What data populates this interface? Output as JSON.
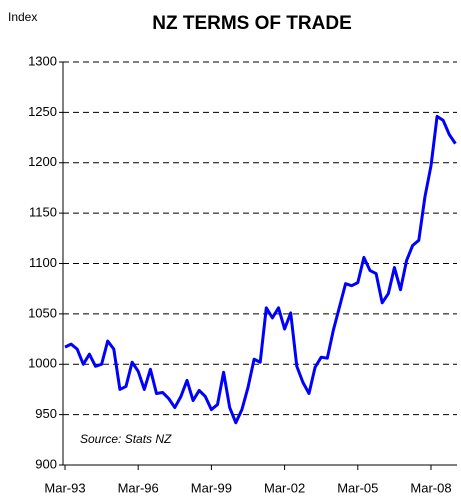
{
  "chart_data": {
    "type": "line",
    "title": "NZ TERMS OF TRADE",
    "y_label": "Index",
    "annotation": "Source: Stats NZ",
    "categories": [
      "Mar-93",
      null,
      null,
      null,
      null,
      null,
      null,
      null,
      null,
      null,
      null,
      null,
      "Mar-96",
      null,
      null,
      null,
      null,
      null,
      null,
      null,
      null,
      null,
      null,
      null,
      "Mar-99",
      null,
      null,
      null,
      null,
      null,
      null,
      null,
      null,
      null,
      null,
      null,
      "Mar-02",
      null,
      null,
      null,
      null,
      null,
      null,
      null,
      null,
      null,
      null,
      null,
      "Mar-05",
      null,
      null,
      null,
      null,
      null,
      null,
      null,
      null,
      null,
      null,
      null,
      "Mar-08",
      null,
      null,
      null,
      null
    ],
    "series": [
      {
        "name": "Terms of trade",
        "color": "#0000ff",
        "values": [
          1017,
          1020,
          1015,
          1000,
          1010,
          998,
          1000,
          1023,
          1015,
          975,
          978,
          1002,
          993,
          975,
          995,
          971,
          972,
          966,
          957,
          968,
          984,
          964,
          974,
          968,
          955,
          960,
          992,
          957,
          942,
          955,
          977,
          1005,
          1002,
          1056,
          1046,
          1056,
          1035,
          1051,
          998,
          982,
          971,
          997,
          1007,
          1006,
          1034,
          1057,
          1080,
          1078,
          1081,
          1106,
          1093,
          1090,
          1061,
          1070,
          1096,
          1074,
          1103,
          1118,
          1123,
          1166,
          1197,
          1246,
          1242,
          1228,
          1219
        ]
      }
    ],
    "ylim": [
      900,
      1300
    ],
    "yticks": [
      900,
      950,
      1000,
      1050,
      1100,
      1150,
      1200,
      1250,
      1300
    ],
    "grid": true
  }
}
